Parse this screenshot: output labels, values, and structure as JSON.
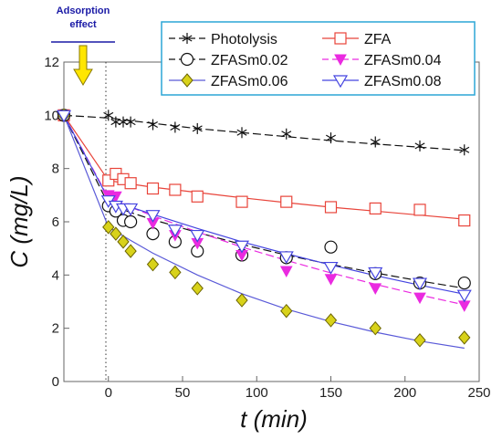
{
  "chart_data": {
    "type": "scatter",
    "xlabel": "t (min)",
    "ylabel": "C (mg/L)",
    "xlim": [
      -30,
      250
    ],
    "ylim": [
      0,
      12
    ],
    "xticks": [
      "0",
      "50",
      "100",
      "150",
      "200",
      "250"
    ],
    "yticks": [
      "0",
      "2",
      "4",
      "6",
      "8",
      "10",
      "12"
    ],
    "annotation": {
      "line1": "Adsorption",
      "line2": "effect"
    },
    "legend_position": "top-right",
    "series": [
      {
        "name": "Photolysis",
        "color": "#111111",
        "marker": "asterisk",
        "dash": "dash",
        "points": [
          [
            -30,
            10
          ],
          [
            0,
            10.0
          ],
          [
            5,
            9.75
          ],
          [
            10,
            9.75
          ],
          [
            15,
            9.75
          ],
          [
            30,
            9.65
          ],
          [
            45,
            9.55
          ],
          [
            60,
            9.5
          ],
          [
            90,
            9.35
          ],
          [
            120,
            9.3
          ],
          [
            150,
            9.15
          ],
          [
            180,
            9.0
          ],
          [
            210,
            8.85
          ],
          [
            240,
            8.7
          ]
        ],
        "fit": [
          [
            -30,
            10
          ],
          [
            0,
            9.9
          ],
          [
            30,
            9.7
          ],
          [
            60,
            9.5
          ],
          [
            90,
            9.35
          ],
          [
            120,
            9.2
          ],
          [
            150,
            9.05
          ],
          [
            180,
            8.92
          ],
          [
            210,
            8.8
          ],
          [
            240,
            8.68
          ]
        ]
      },
      {
        "name": "ZFA",
        "color": "#e8443a",
        "marker": "open-square",
        "dash": "solid",
        "points": [
          [
            -30,
            10
          ],
          [
            0,
            7.55
          ],
          [
            5,
            7.8
          ],
          [
            10,
            7.6
          ],
          [
            15,
            7.45
          ],
          [
            30,
            7.25
          ],
          [
            45,
            7.2
          ],
          [
            60,
            6.95
          ],
          [
            90,
            6.75
          ],
          [
            120,
            6.75
          ],
          [
            150,
            6.55
          ],
          [
            180,
            6.5
          ],
          [
            210,
            6.45
          ],
          [
            240,
            6.05
          ]
        ],
        "fit": [
          [
            -30,
            10
          ],
          [
            0,
            7.55
          ],
          [
            15,
            7.42
          ],
          [
            30,
            7.3
          ],
          [
            60,
            7.1
          ],
          [
            90,
            6.9
          ],
          [
            120,
            6.72
          ],
          [
            150,
            6.55
          ],
          [
            180,
            6.4
          ],
          [
            210,
            6.25
          ],
          [
            240,
            6.1
          ]
        ]
      },
      {
        "name": "ZFASm0.02",
        "color": "#111111",
        "marker": "open-circle",
        "dash": "dash",
        "points": [
          [
            -30,
            10
          ],
          [
            0,
            6.6
          ],
          [
            5,
            6.4
          ],
          [
            10,
            6.05
          ],
          [
            15,
            6.0
          ],
          [
            30,
            5.55
          ],
          [
            45,
            5.25
          ],
          [
            60,
            4.9
          ],
          [
            90,
            4.75
          ],
          [
            120,
            4.65
          ],
          [
            150,
            5.05
          ],
          [
            180,
            4.05
          ],
          [
            210,
            3.7
          ],
          [
            240,
            3.7
          ]
        ],
        "fit": [
          [
            -30,
            10
          ],
          [
            0,
            6.65
          ],
          [
            15,
            6.35
          ],
          [
            30,
            6.08
          ],
          [
            60,
            5.6
          ],
          [
            90,
            5.15
          ],
          [
            120,
            4.75
          ],
          [
            150,
            4.4
          ],
          [
            180,
            4.08
          ],
          [
            210,
            3.78
          ],
          [
            240,
            3.5
          ]
        ]
      },
      {
        "name": "ZFASm0.04",
        "color": "#ea2ae0",
        "marker": "filled-triangle",
        "dash": "dash",
        "points": [
          [
            -30,
            10
          ],
          [
            0,
            7.0
          ],
          [
            5,
            6.95
          ],
          [
            10,
            6.5
          ],
          [
            15,
            6.45
          ],
          [
            30,
            5.95
          ],
          [
            45,
            5.5
          ],
          [
            60,
            5.2
          ],
          [
            90,
            4.75
          ],
          [
            120,
            4.15
          ],
          [
            150,
            3.85
          ],
          [
            180,
            3.5
          ],
          [
            210,
            3.15
          ],
          [
            240,
            2.85
          ]
        ],
        "fit": [
          [
            -30,
            10
          ],
          [
            0,
            6.9
          ],
          [
            15,
            6.55
          ],
          [
            30,
            6.22
          ],
          [
            60,
            5.62
          ],
          [
            90,
            5.05
          ],
          [
            120,
            4.55
          ],
          [
            150,
            4.08
          ],
          [
            180,
            3.65
          ],
          [
            210,
            3.25
          ],
          [
            240,
            2.88
          ]
        ]
      },
      {
        "name": "ZFASm0.06",
        "color": "#d8d21a",
        "marker": "filled-diamond",
        "dash": "solid",
        "points": [
          [
            -30,
            10
          ],
          [
            0,
            5.8
          ],
          [
            5,
            5.55
          ],
          [
            10,
            5.25
          ],
          [
            15,
            4.9
          ],
          [
            30,
            4.4
          ],
          [
            45,
            4.1
          ],
          [
            60,
            3.5
          ],
          [
            90,
            3.05
          ],
          [
            120,
            2.65
          ],
          [
            150,
            2.3
          ],
          [
            180,
            2.0
          ],
          [
            210,
            1.55
          ],
          [
            240,
            1.65
          ]
        ],
        "fit": [
          [
            -30,
            10
          ],
          [
            0,
            5.8
          ],
          [
            15,
            5.3
          ],
          [
            30,
            4.82
          ],
          [
            60,
            4.0
          ],
          [
            90,
            3.3
          ],
          [
            120,
            2.72
          ],
          [
            150,
            2.25
          ],
          [
            180,
            1.85
          ],
          [
            210,
            1.52
          ],
          [
            240,
            1.25
          ]
        ]
      },
      {
        "name": "ZFASm0.08",
        "color": "#4444e0",
        "marker": "open-triangle",
        "dash": "solid",
        "points": [
          [
            -30,
            10
          ],
          [
            0,
            6.8
          ],
          [
            5,
            6.6
          ],
          [
            10,
            6.5
          ],
          [
            15,
            6.5
          ],
          [
            30,
            6.25
          ],
          [
            45,
            5.7
          ],
          [
            60,
            5.5
          ],
          [
            90,
            5.1
          ],
          [
            120,
            4.7
          ],
          [
            150,
            4.3
          ],
          [
            180,
            4.1
          ],
          [
            210,
            3.7
          ],
          [
            240,
            3.25
          ]
        ],
        "fit": [
          [
            -30,
            10
          ],
          [
            0,
            6.85
          ],
          [
            15,
            6.55
          ],
          [
            30,
            6.28
          ],
          [
            60,
            5.75
          ],
          [
            90,
            5.25
          ],
          [
            120,
            4.8
          ],
          [
            150,
            4.38
          ],
          [
            180,
            3.98
          ],
          [
            210,
            3.62
          ],
          [
            240,
            3.28
          ]
        ]
      }
    ]
  }
}
